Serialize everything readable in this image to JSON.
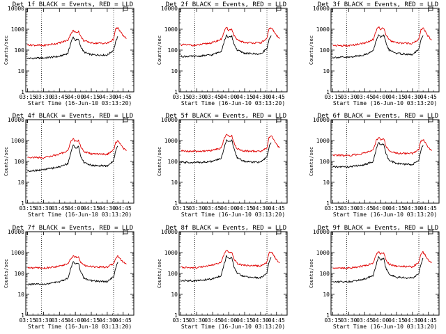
{
  "colors": {
    "events": "#000000",
    "lld": "#e00000",
    "axis": "#000000",
    "marker": "#000000"
  },
  "xtick_labels": [
    "03:15",
    "03:30",
    "03:45",
    "04:00",
    "04:15",
    "04:30",
    "04:45"
  ],
  "ytick_labels": [
    "1",
    "10",
    "100",
    "1000",
    "10000"
  ],
  "chart_data": [
    {
      "type": "line",
      "title": "Det 1f BLACK = Events, RED = LLD",
      "xlabel": "Start Time (16-Jun-10 03:13:20)",
      "ylabel": "Counts/sec",
      "xlim": [
        "03:13:20",
        "04:55:00"
      ],
      "ylim": [
        1,
        10000
      ],
      "yscale": "log",
      "marker_lines": [
        "03:28",
        "04:36"
      ],
      "x": [
        "03:15",
        "03:30",
        "03:45",
        "03:53",
        "03:56",
        "03:58",
        "04:00",
        "04:03",
        "04:05",
        "04:08",
        "04:15",
        "04:30",
        "04:36",
        "04:38",
        "04:40",
        "04:42",
        "04:45",
        "04:48"
      ],
      "series": [
        {
          "name": "BLACK = Events",
          "values": [
            40,
            42,
            50,
            70,
            250,
            420,
            300,
            320,
            150,
            80,
            60,
            58,
            100,
            250,
            450,
            null,
            null,
            null
          ]
        },
        {
          "name": "RED = LLD",
          "values": [
            180,
            165,
            220,
            300,
            650,
            850,
            700,
            800,
            450,
            280,
            220,
            210,
            330,
            1050,
            1150,
            800,
            500,
            350
          ]
        }
      ]
    },
    {
      "type": "line",
      "title": "Det 2f BLACK = Events, RED = LLD",
      "xlabel": "Start Time (16-Jun-10 03:13:20)",
      "ylabel": "Counts/sec",
      "xlim": [
        "03:13:20",
        "04:55:00"
      ],
      "ylim": [
        1,
        10000
      ],
      "yscale": "log",
      "marker_lines": [
        "03:28",
        "04:36"
      ],
      "x": [
        "03:15",
        "03:30",
        "03:45",
        "03:53",
        "03:56",
        "03:58",
        "04:00",
        "04:03",
        "04:05",
        "04:08",
        "04:15",
        "04:30",
        "04:36",
        "04:38",
        "04:40",
        "04:42",
        "04:45",
        "04:48"
      ],
      "series": [
        {
          "name": "BLACK = Events",
          "values": [
            50,
            50,
            60,
            90,
            280,
            500,
            400,
            450,
            200,
            100,
            70,
            65,
            120,
            300,
            500,
            null,
            null,
            null
          ]
        },
        {
          "name": "RED = LLD",
          "values": [
            180,
            170,
            230,
            330,
            800,
            1200,
            900,
            1000,
            500,
            300,
            230,
            220,
            350,
            1050,
            1200,
            850,
            500,
            350
          ]
        }
      ]
    },
    {
      "type": "line",
      "title": "Det 3f BLACK = Events, RED = LLD",
      "xlabel": "Start Time (16-Jun-10 03:13:20)",
      "ylabel": "Counts/sec",
      "xlim": [
        "03:13:20",
        "04:55:00"
      ],
      "ylim": [
        1,
        10000
      ],
      "yscale": "log",
      "marker_lines": [
        "03:28",
        "04:36"
      ],
      "x": [
        "03:15",
        "03:30",
        "03:45",
        "03:53",
        "03:56",
        "03:58",
        "04:00",
        "04:03",
        "04:05",
        "04:08",
        "04:15",
        "04:30",
        "04:36",
        "04:38",
        "04:40",
        "04:42",
        "04:45",
        "04:48"
      ],
      "series": [
        {
          "name": "BLACK = Events",
          "values": [
            45,
            45,
            60,
            90,
            300,
            550,
            400,
            500,
            220,
            100,
            70,
            60,
            110,
            300,
            500,
            null,
            null,
            null
          ]
        },
        {
          "name": "RED = LLD",
          "values": [
            170,
            160,
            220,
            320,
            900,
            1300,
            1000,
            1200,
            550,
            300,
            220,
            210,
            330,
            1000,
            1150,
            800,
            450,
            300
          ]
        }
      ]
    },
    {
      "type": "line",
      "title": "Det 4f BLACK = Events, RED = LLD",
      "xlabel": "Start Time (16-Jun-10 03:13:20)",
      "ylabel": "Counts/sec",
      "xlim": [
        "03:13:20",
        "04:55:00"
      ],
      "ylim": [
        1,
        10000
      ],
      "yscale": "log",
      "marker_lines": [
        "03:28",
        "04:36"
      ],
      "x": [
        "03:15",
        "03:30",
        "03:45",
        "03:53",
        "03:56",
        "03:58",
        "04:00",
        "04:03",
        "04:05",
        "04:08",
        "04:15",
        "04:30",
        "04:36",
        "04:38",
        "04:40",
        "04:42",
        "04:45",
        "04:48"
      ],
      "series": [
        {
          "name": "BLACK = Events",
          "values": [
            35,
            40,
            55,
            80,
            300,
            600,
            450,
            500,
            180,
            90,
            65,
            60,
            110,
            350,
            550,
            null,
            null,
            null
          ]
        },
        {
          "name": "RED = LLD",
          "values": [
            160,
            150,
            220,
            330,
            1000,
            1200,
            900,
            1000,
            500,
            300,
            230,
            220,
            350,
            850,
            950,
            700,
            450,
            320
          ]
        }
      ]
    },
    {
      "type": "line",
      "title": "Det 5f BLACK = Events, RED = LLD",
      "xlabel": "Start Time (16-Jun-10 03:13:20)",
      "ylabel": "Counts/sec",
      "xlim": [
        "03:13:20",
        "04:55:00"
      ],
      "ylim": [
        1,
        10000
      ],
      "yscale": "log",
      "marker_lines": [
        "03:28",
        "04:36"
      ],
      "x": [
        "03:15",
        "03:30",
        "03:45",
        "03:53",
        "03:56",
        "03:58",
        "04:00",
        "04:03",
        "04:05",
        "04:08",
        "04:15",
        "04:30",
        "04:36",
        "04:38",
        "04:40",
        "04:42",
        "04:45",
        "04:48"
      ],
      "series": [
        {
          "name": "BLACK = Events",
          "values": [
            90,
            90,
            100,
            140,
            500,
            1100,
            900,
            1000,
            400,
            150,
            100,
            90,
            160,
            500,
            800,
            null,
            null,
            null
          ]
        },
        {
          "name": "RED = LLD",
          "values": [
            320,
            300,
            340,
            450,
            1300,
            2000,
            1600,
            1700,
            800,
            400,
            320,
            300,
            450,
            1400,
            1800,
            1200,
            650,
            450
          ]
        }
      ]
    },
    {
      "type": "line",
      "title": "Det 6f BLACK = Events, RED = LLD",
      "xlabel": "Start Time (16-Jun-10 03:13:20)",
      "ylabel": "Counts/sec",
      "xlim": [
        "03:13:20",
        "04:55:00"
      ],
      "ylim": [
        1,
        10000
      ],
      "yscale": "log",
      "marker_lines": [
        "03:28",
        "04:36"
      ],
      "x": [
        "03:15",
        "03:30",
        "03:45",
        "03:53",
        "03:56",
        "03:58",
        "04:00",
        "04:03",
        "04:05",
        "04:08",
        "04:15",
        "04:30",
        "04:36",
        "04:38",
        "04:40",
        "04:42",
        "04:45",
        "04:48"
      ],
      "series": [
        {
          "name": "BLACK = Events",
          "values": [
            55,
            55,
            70,
            100,
            400,
            800,
            600,
            700,
            250,
            110,
            80,
            70,
            120,
            350,
            600,
            null,
            null,
            null
          ]
        },
        {
          "name": "RED = LLD",
          "values": [
            200,
            190,
            250,
            350,
            1000,
            1400,
            1100,
            1200,
            550,
            320,
            250,
            240,
            380,
            950,
            1100,
            800,
            450,
            320
          ]
        }
      ]
    },
    {
      "type": "line",
      "title": "Det 7f BLACK = Events, RED = LLD",
      "xlabel": "Start Time (16-Jun-10 03:13:20)",
      "ylabel": "Counts/sec",
      "xlim": [
        "03:13:20",
        "04:55:00"
      ],
      "ylim": [
        1,
        10000
      ],
      "yscale": "log",
      "marker_lines": [
        "03:28",
        "04:36"
      ],
      "x": [
        "03:15",
        "03:30",
        "03:45",
        "03:53",
        "03:56",
        "03:58",
        "04:00",
        "04:03",
        "04:05",
        "04:08",
        "04:15",
        "04:30",
        "04:36",
        "04:38",
        "04:40",
        "04:42",
        "04:45",
        "04:48"
      ],
      "series": [
        {
          "name": "BLACK = Events",
          "values": [
            30,
            30,
            40,
            60,
            200,
            350,
            280,
            300,
            120,
            60,
            45,
            40,
            70,
            200,
            350,
            null,
            null,
            null
          ]
        },
        {
          "name": "RED = LLD",
          "values": [
            190,
            180,
            220,
            300,
            550,
            700,
            600,
            650,
            350,
            250,
            210,
            200,
            300,
            550,
            650,
            500,
            350,
            280
          ]
        }
      ]
    },
    {
      "type": "line",
      "title": "Det 8f BLACK = Events, RED = LLD",
      "xlabel": "Start Time (16-Jun-10 03:13:20)",
      "ylabel": "Counts/sec",
      "xlim": [
        "03:13:20",
        "04:55:00"
      ],
      "ylim": [
        1,
        10000
      ],
      "yscale": "log",
      "marker_lines": [
        "03:28",
        "04:36"
      ],
      "x": [
        "03:15",
        "03:30",
        "03:45",
        "03:53",
        "03:56",
        "03:58",
        "04:00",
        "04:03",
        "04:05",
        "04:08",
        "04:15",
        "04:30",
        "04:36",
        "04:38",
        "04:40",
        "04:42",
        "04:45",
        "04:48"
      ],
      "series": [
        {
          "name": "BLACK = Events",
          "values": [
            45,
            45,
            55,
            80,
            300,
            700,
            500,
            600,
            200,
            100,
            70,
            60,
            110,
            350,
            600,
            null,
            null,
            null
          ]
        },
        {
          "name": "RED = LLD",
          "values": [
            200,
            190,
            250,
            340,
            900,
            1300,
            1000,
            1100,
            500,
            300,
            240,
            230,
            350,
            950,
            1100,
            800,
            450,
            320
          ]
        }
      ]
    },
    {
      "type": "line",
      "title": "Det 9f BLACK = Events, RED = LLD",
      "xlabel": "Start Time (16-Jun-10 03:13:20)",
      "ylabel": "Counts/sec",
      "xlim": [
        "03:13:20",
        "04:55:00"
      ],
      "ylim": [
        1,
        10000
      ],
      "yscale": "log",
      "marker_lines": [
        "03:28",
        "04:36"
      ],
      "x": [
        "03:15",
        "03:30",
        "03:45",
        "03:53",
        "03:56",
        "03:58",
        "04:00",
        "04:03",
        "04:05",
        "04:08",
        "04:15",
        "04:30",
        "04:36",
        "04:38",
        "04:40",
        "04:42",
        "04:45",
        "04:48"
      ],
      "series": [
        {
          "name": "BLACK = Events",
          "values": [
            40,
            40,
            55,
            80,
            280,
            600,
            450,
            500,
            180,
            90,
            65,
            60,
            100,
            300,
            550,
            null,
            null,
            null
          ]
        },
        {
          "name": "RED = LLD",
          "values": [
            190,
            180,
            230,
            320,
            800,
            1100,
            900,
            1000,
            450,
            280,
            220,
            210,
            330,
            900,
            1050,
            750,
            450,
            320
          ]
        }
      ]
    }
  ]
}
